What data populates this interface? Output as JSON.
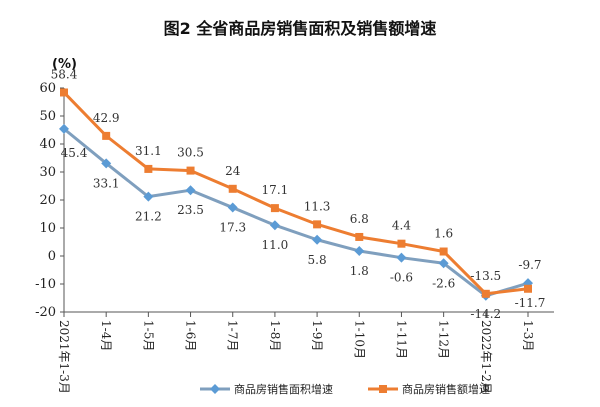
{
  "chart_data": {
    "type": "line",
    "title": "图2 全省商品房销售面积及销售额增速",
    "ylabel": "(%)",
    "xlabel": "",
    "ylim": [
      -20,
      60
    ],
    "yticks": [
      -20,
      -10,
      0,
      10,
      20,
      30,
      40,
      50,
      60
    ],
    "categories": [
      "2021年1-3月",
      "1-4月",
      "1-5月",
      "1-6月",
      "1-7月",
      "1-8月",
      "1-9月",
      "1-10月",
      "1-11月",
      "1-12月",
      "2022年1-2月",
      "1-3月"
    ],
    "series": [
      {
        "name": "商品房销售面积增速",
        "color": "#7f9fbe",
        "marker_color": "#5b9bd5",
        "marker": "diamond",
        "label_position": "below",
        "values": [
          45.4,
          33.1,
          21.2,
          23.5,
          17.3,
          11.0,
          5.8,
          1.8,
          -0.6,
          -2.6,
          -14.2,
          -9.7
        ],
        "labels": [
          "45.4",
          "33.1",
          "21.2",
          "23.5",
          "17.3",
          "11.0",
          "5.8",
          "1.8",
          "-0.6",
          "-2.6",
          "-14.2",
          "-9.7"
        ]
      },
      {
        "name": "商品房销售额增速",
        "color": "#ed7d31",
        "marker_color": "#ed7d31",
        "marker": "square",
        "label_position": "above",
        "values": [
          58.4,
          42.9,
          31.1,
          30.5,
          24.0,
          17.1,
          11.3,
          6.8,
          4.4,
          1.6,
          -13.5,
          -11.7
        ],
        "labels": [
          "58.4",
          "42.9",
          "31.1",
          "30.5",
          "24",
          "17.1",
          "11.3",
          "6.8",
          "4.4",
          "1.6",
          "-13.5",
          "-11.7"
        ]
      }
    ],
    "legend_position": "bottom-right",
    "grid": false
  }
}
